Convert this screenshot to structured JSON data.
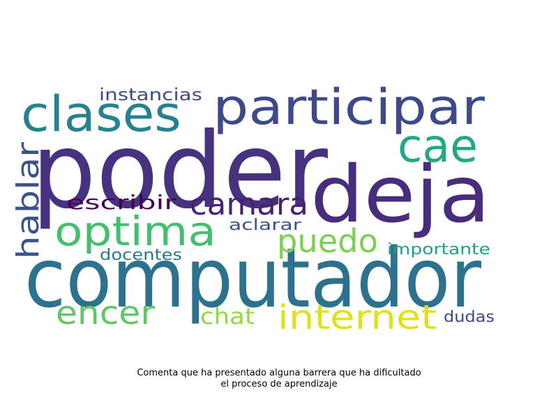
{
  "words": [
    {
      "text": "poder",
      "color": "#46327e"
    },
    {
      "text": "computador",
      "color": "#2c728e"
    },
    {
      "text": "deja",
      "color": "#472d7b"
    },
    {
      "text": "participar",
      "color": "#3e4989"
    },
    {
      "text": "clases",
      "color": "#26828e"
    },
    {
      "text": "cae",
      "color": "#22a884"
    },
    {
      "text": "optima",
      "color": "#44bf70"
    },
    {
      "text": "camara",
      "color": "#482173"
    },
    {
      "text": "puedo",
      "color": "#7ad151"
    },
    {
      "text": "internet",
      "color": "#dde318"
    },
    {
      "text": "encer",
      "color": "#5ec962"
    },
    {
      "text": "hablar",
      "color": "#3b528b"
    },
    {
      "text": "escribir",
      "color": "#440154"
    },
    {
      "text": "instancias",
      "color": "#3e4a89"
    },
    {
      "text": "aclarar",
      "color": "#3b528b"
    },
    {
      "text": "docentes",
      "color": "#2a788e"
    },
    {
      "text": "importante",
      "color": "#1f9e89"
    },
    {
      "text": "chat",
      "color": "#95d840"
    },
    {
      "text": "dudas",
      "color": "#3e4989"
    }
  ],
  "caption": {
    "line1": "Comenta que ha presentado alguna barrera que ha dificultado",
    "line2": "el proceso de aprendizaje"
  }
}
